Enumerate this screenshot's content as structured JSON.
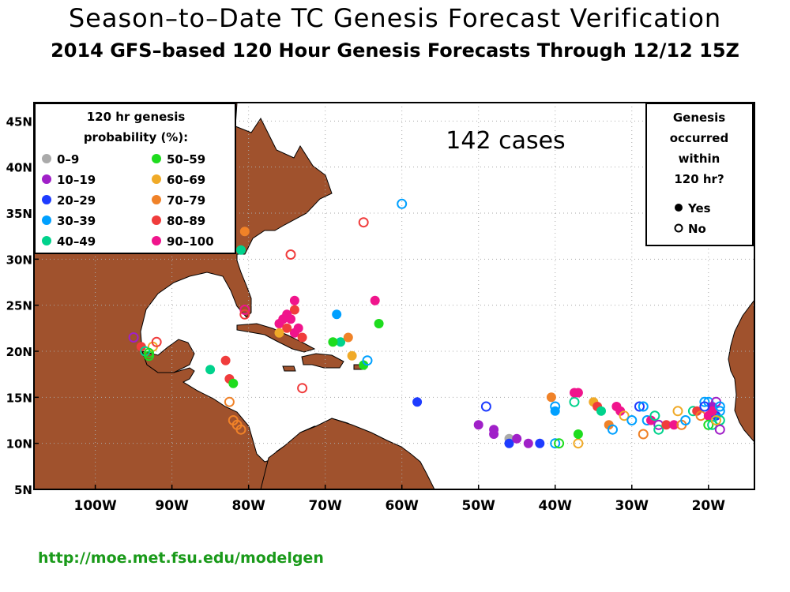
{
  "title": "Season–to–Date TC Genesis Forecast Verification",
  "subtitle": "2014 GFS–based 120 Hour Genesis Forecasts Through 12/12 15Z",
  "cases": "142 cases",
  "url": "http://moe.met.fsu.edu/modelgen",
  "legend": {
    "title_line1": "120 hr genesis",
    "title_line2": "probability (%):",
    "items": [
      {
        "label": "0–9",
        "color": "#aaaaaa"
      },
      {
        "label": "10–19",
        "color": "#a020c8"
      },
      {
        "label": "20–29",
        "color": "#1e3cff"
      },
      {
        "label": "30–39",
        "color": "#00a0ff"
      },
      {
        "label": "40–49",
        "color": "#00d28c"
      },
      {
        "label": "50–59",
        "color": "#1edc1e"
      },
      {
        "label": "60–69",
        "color": "#f0aa28"
      },
      {
        "label": "70–79",
        "color": "#f08228"
      },
      {
        "label": "80–89",
        "color": "#f03c3c"
      },
      {
        "label": "90–100",
        "color": "#f0148c"
      }
    ]
  },
  "genesis_box": {
    "line1": "Genesis",
    "line2": "occurred",
    "line3": "within",
    "line4": "120 hr?",
    "yes": "Yes",
    "no": "No"
  },
  "axes": {
    "lat_ticks": [
      "45N",
      "40N",
      "35N",
      "30N",
      "25N",
      "20N",
      "15N",
      "10N",
      "5N"
    ],
    "lon_ticks": [
      "100W",
      "90W",
      "80W",
      "70W",
      "60W",
      "50W",
      "40W",
      "30W",
      "20W"
    ]
  },
  "chart_data": {
    "type": "scatter",
    "lon_range": [
      -108,
      -14
    ],
    "lat_range": [
      5,
      47
    ],
    "grid": true,
    "points": [
      [
        -95,
        21.5,
        1,
        0
      ],
      [
        -94,
        20.5,
        8,
        1
      ],
      [
        -93,
        19.5,
        5,
        0
      ],
      [
        -92.5,
        20.5,
        6,
        0
      ],
      [
        -92,
        21,
        8,
        0
      ],
      [
        -93.5,
        20,
        4,
        0
      ],
      [
        -93,
        19.8,
        5,
        0
      ],
      [
        -85,
        18,
        4,
        1
      ],
      [
        -83,
        19,
        8,
        1
      ],
      [
        -82.5,
        17,
        8,
        1
      ],
      [
        -82,
        16.5,
        5,
        1
      ],
      [
        -82.5,
        14.5,
        7,
        0
      ],
      [
        -82,
        12.5,
        7,
        0
      ],
      [
        -81.5,
        12,
        7,
        0
      ],
      [
        -81,
        11.5,
        7,
        0
      ],
      [
        -80.5,
        33,
        7,
        1
      ],
      [
        -81,
        31,
        4,
        1
      ],
      [
        -80.5,
        24.5,
        9,
        0
      ],
      [
        -80.5,
        24,
        8,
        0
      ],
      [
        -74.5,
        30.5,
        8,
        0
      ],
      [
        -65,
        34,
        8,
        0
      ],
      [
        -60,
        36,
        3,
        0
      ],
      [
        -74,
        25.5,
        9,
        1
      ],
      [
        -74,
        24.5,
        8,
        1
      ],
      [
        -75,
        24,
        9,
        1
      ],
      [
        -75.5,
        23.5,
        9,
        1
      ],
      [
        -74.5,
        23.5,
        9,
        1
      ],
      [
        -73.5,
        22.5,
        9,
        1
      ],
      [
        -74,
        22,
        9,
        1
      ],
      [
        -73,
        21.5,
        8,
        1
      ],
      [
        -76,
        23,
        9,
        1
      ],
      [
        -75,
        22.5,
        8,
        1
      ],
      [
        -73,
        16,
        8,
        0
      ],
      [
        -76,
        22,
        6,
        1
      ],
      [
        -68.5,
        24,
        3,
        1
      ],
      [
        -68,
        21,
        4,
        1
      ],
      [
        -69,
        21,
        5,
        1
      ],
      [
        -67,
        21.5,
        7,
        1
      ],
      [
        -66.5,
        19.5,
        6,
        1
      ],
      [
        -65,
        18.5,
        5,
        1
      ],
      [
        -64.5,
        19,
        3,
        0
      ],
      [
        -63.5,
        25.5,
        9,
        1
      ],
      [
        -63,
        23,
        5,
        1
      ],
      [
        -58,
        14.5,
        2,
        1
      ],
      [
        -50,
        12,
        1,
        1
      ],
      [
        -48,
        11.5,
        1,
        1
      ],
      [
        -48,
        11,
        1,
        1
      ],
      [
        -49,
        14,
        2,
        0
      ],
      [
        -46,
        10.5,
        0,
        1
      ],
      [
        -46,
        10,
        2,
        1
      ],
      [
        -45,
        10.5,
        1,
        1
      ],
      [
        -43.5,
        10,
        1,
        1
      ],
      [
        -42,
        10,
        2,
        1
      ],
      [
        -40,
        10,
        3,
        0
      ],
      [
        -39.5,
        10,
        5,
        0
      ],
      [
        -37,
        10,
        6,
        0
      ],
      [
        -37,
        11,
        5,
        1
      ],
      [
        -40.5,
        15,
        7,
        1
      ],
      [
        -40,
        13.5,
        3,
        1
      ],
      [
        -40,
        14,
        3,
        0
      ],
      [
        -37.5,
        14.5,
        4,
        0
      ],
      [
        -37.5,
        15.5,
        9,
        1
      ],
      [
        -37,
        15.5,
        9,
        1
      ],
      [
        -35,
        14.5,
        6,
        1
      ],
      [
        -34.5,
        14,
        8,
        1
      ],
      [
        -34,
        13.5,
        4,
        1
      ],
      [
        -33,
        12,
        7,
        1
      ],
      [
        -32.5,
        11.5,
        3,
        0
      ],
      [
        -32,
        14,
        9,
        1
      ],
      [
        -31.5,
        13.5,
        9,
        1
      ],
      [
        -31,
        13,
        6,
        0
      ],
      [
        -30,
        12.5,
        3,
        0
      ],
      [
        -29,
        14,
        2,
        0
      ],
      [
        -28.5,
        14,
        3,
        0
      ],
      [
        -28,
        12.5,
        3,
        0
      ],
      [
        -27.5,
        12.5,
        9,
        1
      ],
      [
        -28.5,
        11,
        7,
        0
      ],
      [
        -27,
        13,
        4,
        0
      ],
      [
        -26.5,
        12,
        1,
        0
      ],
      [
        -26.5,
        11.5,
        4,
        0
      ],
      [
        -25.5,
        12,
        8,
        1
      ],
      [
        -24.5,
        12,
        9,
        1
      ],
      [
        -24,
        13.5,
        6,
        0
      ],
      [
        -23.5,
        12,
        7,
        0
      ],
      [
        -23,
        12.5,
        3,
        0
      ],
      [
        -22,
        13.5,
        4,
        0
      ],
      [
        -21.5,
        13.5,
        8,
        1
      ],
      [
        -21,
        13,
        7,
        0
      ],
      [
        -20.5,
        14.5,
        3,
        0
      ],
      [
        -20,
        14.5,
        3,
        0
      ],
      [
        -20,
        13,
        9,
        1
      ],
      [
        -20,
        12,
        5,
        0
      ],
      [
        -19.5,
        12,
        4,
        0
      ],
      [
        -19.5,
        14,
        1,
        1
      ],
      [
        -19,
        14.5,
        1,
        0
      ],
      [
        -19,
        13,
        2,
        1
      ],
      [
        -18.5,
        13.5,
        3,
        0
      ],
      [
        -18.5,
        12.5,
        4,
        0
      ],
      [
        -18.5,
        11.5,
        1,
        0
      ],
      [
        -19,
        12.5,
        6,
        0
      ],
      [
        -19.5,
        13.5,
        9,
        1
      ],
      [
        -20.5,
        14,
        2,
        0
      ],
      [
        -18.5,
        14,
        3,
        0
      ]
    ]
  }
}
